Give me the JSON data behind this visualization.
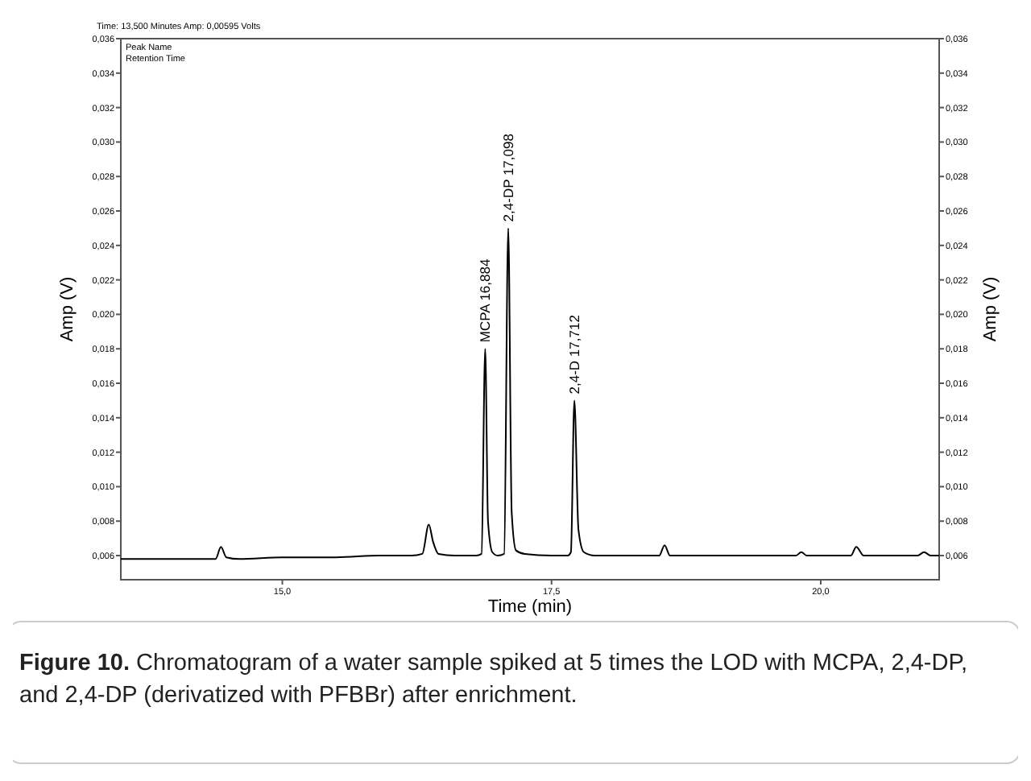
{
  "chart_data": {
    "type": "line",
    "xlabel": "Time (min)",
    "ylabel": "Amp (V)",
    "y2label": "Amp (V)",
    "xlim": [
      13.5,
      21.1
    ],
    "ylim": [
      0.0046,
      0.036
    ],
    "y2lim": [
      0.0046,
      0.036
    ],
    "xticks": [
      {
        "value": 15,
        "label": "15,0"
      },
      {
        "value": 17.5,
        "label": "17,5"
      },
      {
        "value": 20,
        "label": "20,0"
      }
    ],
    "yticks": [
      {
        "value": 0.006,
        "label": "0,006"
      },
      {
        "value": 0.008,
        "label": "0,008"
      },
      {
        "value": 0.01,
        "label": "0,010"
      },
      {
        "value": 0.012,
        "label": "0,012"
      },
      {
        "value": 0.014,
        "label": "0,014"
      },
      {
        "value": 0.016,
        "label": "0,016"
      },
      {
        "value": 0.018,
        "label": "0,018"
      },
      {
        "value": 0.02,
        "label": "0,020"
      },
      {
        "value": 0.022,
        "label": "0,022"
      },
      {
        "value": 0.024,
        "label": "0,024"
      },
      {
        "value": 0.026,
        "label": "0,026"
      },
      {
        "value": 0.028,
        "label": "0,028"
      },
      {
        "value": 0.03,
        "label": "0,030"
      },
      {
        "value": 0.032,
        "label": "0,032"
      },
      {
        "value": 0.034,
        "label": "0,034"
      },
      {
        "value": 0.036,
        "label": "0,036"
      }
    ],
    "y2ticks": [
      {
        "value": 0.006,
        "label": "0,006"
      },
      {
        "value": 0.008,
        "label": "0,008"
      },
      {
        "value": 0.01,
        "label": "0,010"
      },
      {
        "value": 0.012,
        "label": "0,012"
      },
      {
        "value": 0.014,
        "label": "0,014"
      },
      {
        "value": 0.016,
        "label": "0,016"
      },
      {
        "value": 0.018,
        "label": "0,018"
      },
      {
        "value": 0.02,
        "label": "0,020"
      },
      {
        "value": 0.022,
        "label": "0,022"
      },
      {
        "value": 0.024,
        "label": "0,024"
      },
      {
        "value": 0.026,
        "label": "0,026"
      },
      {
        "value": 0.028,
        "label": "0,028"
      },
      {
        "value": 0.03,
        "label": "0,030"
      },
      {
        "value": 0.032,
        "label": "0,032"
      },
      {
        "value": 0.034,
        "label": "0,034"
      },
      {
        "value": 0.036,
        "label": "0,036"
      }
    ],
    "grid": false,
    "series": [
      {
        "color": "#000000",
        "x": [
          13.5,
          14.0,
          14.38,
          14.43,
          14.48,
          14.6,
          15.0,
          15.5,
          15.9,
          16.2,
          16.3,
          16.36,
          16.4,
          16.45,
          16.6,
          16.8,
          16.85,
          16.884,
          16.91,
          16.95,
          17.0,
          17.06,
          17.098,
          17.13,
          17.17,
          17.25,
          17.5,
          17.65,
          17.68,
          17.712,
          17.75,
          17.8,
          17.9,
          18.5,
          18.55,
          18.6,
          19.0,
          19.77,
          19.82,
          19.87,
          20.28,
          20.33,
          20.4,
          20.9,
          20.96,
          21.02,
          21.1
        ],
        "values": [
          0.0058,
          0.0058,
          0.0058,
          0.0065,
          0.0059,
          0.0058,
          0.0059,
          0.0059,
          0.006,
          0.006,
          0.0061,
          0.0078,
          0.0068,
          0.0061,
          0.006,
          0.006,
          0.0061,
          0.018,
          0.008,
          0.0062,
          0.006,
          0.0061,
          0.025,
          0.0085,
          0.0063,
          0.0061,
          0.006,
          0.006,
          0.0062,
          0.015,
          0.0075,
          0.0062,
          0.006,
          0.006,
          0.0066,
          0.006,
          0.006,
          0.006,
          0.0062,
          0.006,
          0.006,
          0.0065,
          0.006,
          0.006,
          0.0062,
          0.006,
          0.006
        ]
      }
    ],
    "annotations": [
      "Time:  13,500 Minutes   Amp:   0,00595 Volts",
      "Peak Name",
      "Retention Time",
      {
        "text": "MCPA  16,884",
        "x": 16.884,
        "y": 0.018
      },
      {
        "text": "2,4-DP  17,098",
        "x": 17.098,
        "y": 0.025
      },
      {
        "text": "2,4-D  17,712",
        "x": 17.712,
        "y": 0.015
      },
      "Figure 10. Chromatogram of a water sample spiked at 5 times the LOD with MCPA, 2,4-DP, and 2,4-DP (derivatized with PFBBr) after enrichment."
    ]
  }
}
